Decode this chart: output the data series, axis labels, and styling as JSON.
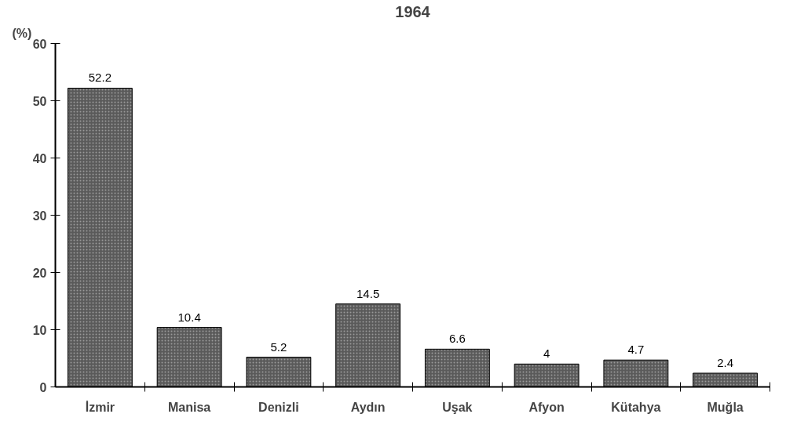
{
  "chart_data": {
    "type": "bar",
    "title": "1964",
    "ylabel": "(%)",
    "categories": [
      "İzmir",
      "Manisa",
      "Denizli",
      "Aydın",
      "Uşak",
      "Afyon",
      "Kütahya",
      "Muğla"
    ],
    "values": [
      52.2,
      10.4,
      5.2,
      14.5,
      6.6,
      4,
      4.7,
      2.4
    ],
    "color": "#5a5a5a",
    "ylim": [
      0,
      60
    ],
    "yticks": [
      0,
      10,
      20,
      30,
      40,
      50,
      60
    ],
    "grid": false,
    "data_labels": true
  }
}
